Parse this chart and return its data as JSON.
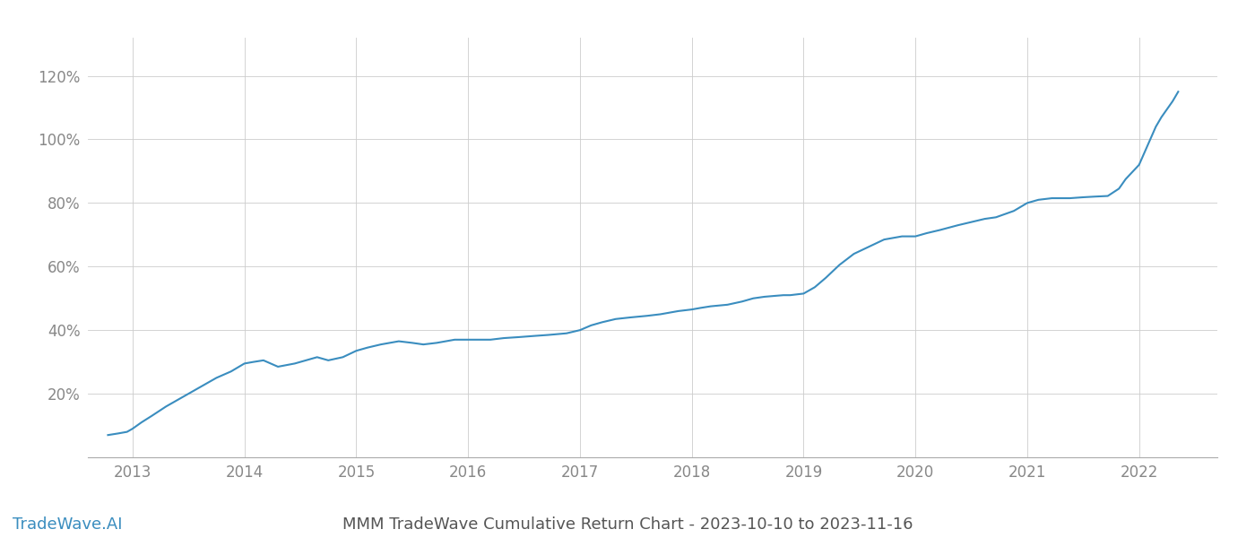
{
  "title": "MMM TradeWave Cumulative Return Chart - 2023-10-10 to 2023-11-16",
  "watermark": "TradeWave.AI",
  "line_color": "#3a8dbf",
  "background_color": "#ffffff",
  "grid_color": "#cccccc",
  "ylabel": "",
  "xlabel": "",
  "x_years": [
    2013,
    2014,
    2015,
    2016,
    2017,
    2018,
    2019,
    2020,
    2021,
    2022
  ],
  "yticks": [
    0.2,
    0.4,
    0.6,
    0.8,
    1.0,
    1.2
  ],
  "ytick_labels": [
    "20%",
    "40%",
    "60%",
    "80%",
    "100%",
    "120%"
  ],
  "xlim": [
    2012.6,
    2022.7
  ],
  "ylim": [
    0.0,
    1.32
  ],
  "x_data": [
    2012.78,
    2012.87,
    2012.95,
    2013.0,
    2013.08,
    2013.17,
    2013.3,
    2013.45,
    2013.6,
    2013.75,
    2013.88,
    2014.0,
    2014.08,
    2014.17,
    2014.3,
    2014.45,
    2014.55,
    2014.65,
    2014.75,
    2014.88,
    2015.0,
    2015.1,
    2015.22,
    2015.38,
    2015.5,
    2015.6,
    2015.72,
    2015.88,
    2016.0,
    2016.1,
    2016.2,
    2016.32,
    2016.45,
    2016.6,
    2016.72,
    2016.88,
    2017.0,
    2017.1,
    2017.2,
    2017.32,
    2017.45,
    2017.6,
    2017.72,
    2017.88,
    2018.0,
    2018.08,
    2018.17,
    2018.32,
    2018.45,
    2018.55,
    2018.65,
    2018.75,
    2018.82,
    2018.88,
    2019.0,
    2019.1,
    2019.2,
    2019.32,
    2019.45,
    2019.6,
    2019.72,
    2019.88,
    2020.0,
    2020.1,
    2020.22,
    2020.38,
    2020.5,
    2020.62,
    2020.72,
    2020.88,
    2021.0,
    2021.1,
    2021.22,
    2021.38,
    2021.5,
    2021.6,
    2021.72,
    2021.82,
    2021.88,
    2022.0,
    2022.05,
    2022.1,
    2022.15,
    2022.2,
    2022.25,
    2022.3,
    2022.35
  ],
  "y_data": [
    0.07,
    0.075,
    0.08,
    0.09,
    0.11,
    0.13,
    0.16,
    0.19,
    0.22,
    0.25,
    0.27,
    0.295,
    0.3,
    0.305,
    0.285,
    0.295,
    0.305,
    0.315,
    0.305,
    0.315,
    0.335,
    0.345,
    0.355,
    0.365,
    0.36,
    0.355,
    0.36,
    0.37,
    0.37,
    0.37,
    0.37,
    0.375,
    0.378,
    0.382,
    0.385,
    0.39,
    0.4,
    0.415,
    0.425,
    0.435,
    0.44,
    0.445,
    0.45,
    0.46,
    0.465,
    0.47,
    0.475,
    0.48,
    0.49,
    0.5,
    0.505,
    0.508,
    0.51,
    0.51,
    0.515,
    0.535,
    0.565,
    0.605,
    0.64,
    0.665,
    0.685,
    0.695,
    0.695,
    0.705,
    0.715,
    0.73,
    0.74,
    0.75,
    0.755,
    0.775,
    0.8,
    0.81,
    0.815,
    0.815,
    0.818,
    0.82,
    0.822,
    0.845,
    0.875,
    0.92,
    0.96,
    1.0,
    1.04,
    1.07,
    1.095,
    1.12,
    1.15
  ],
  "tick_fontsize": 12,
  "watermark_fontsize": 13,
  "title_fontsize": 13,
  "tick_color": "#888888",
  "title_color": "#555555",
  "spine_color": "#aaaaaa"
}
